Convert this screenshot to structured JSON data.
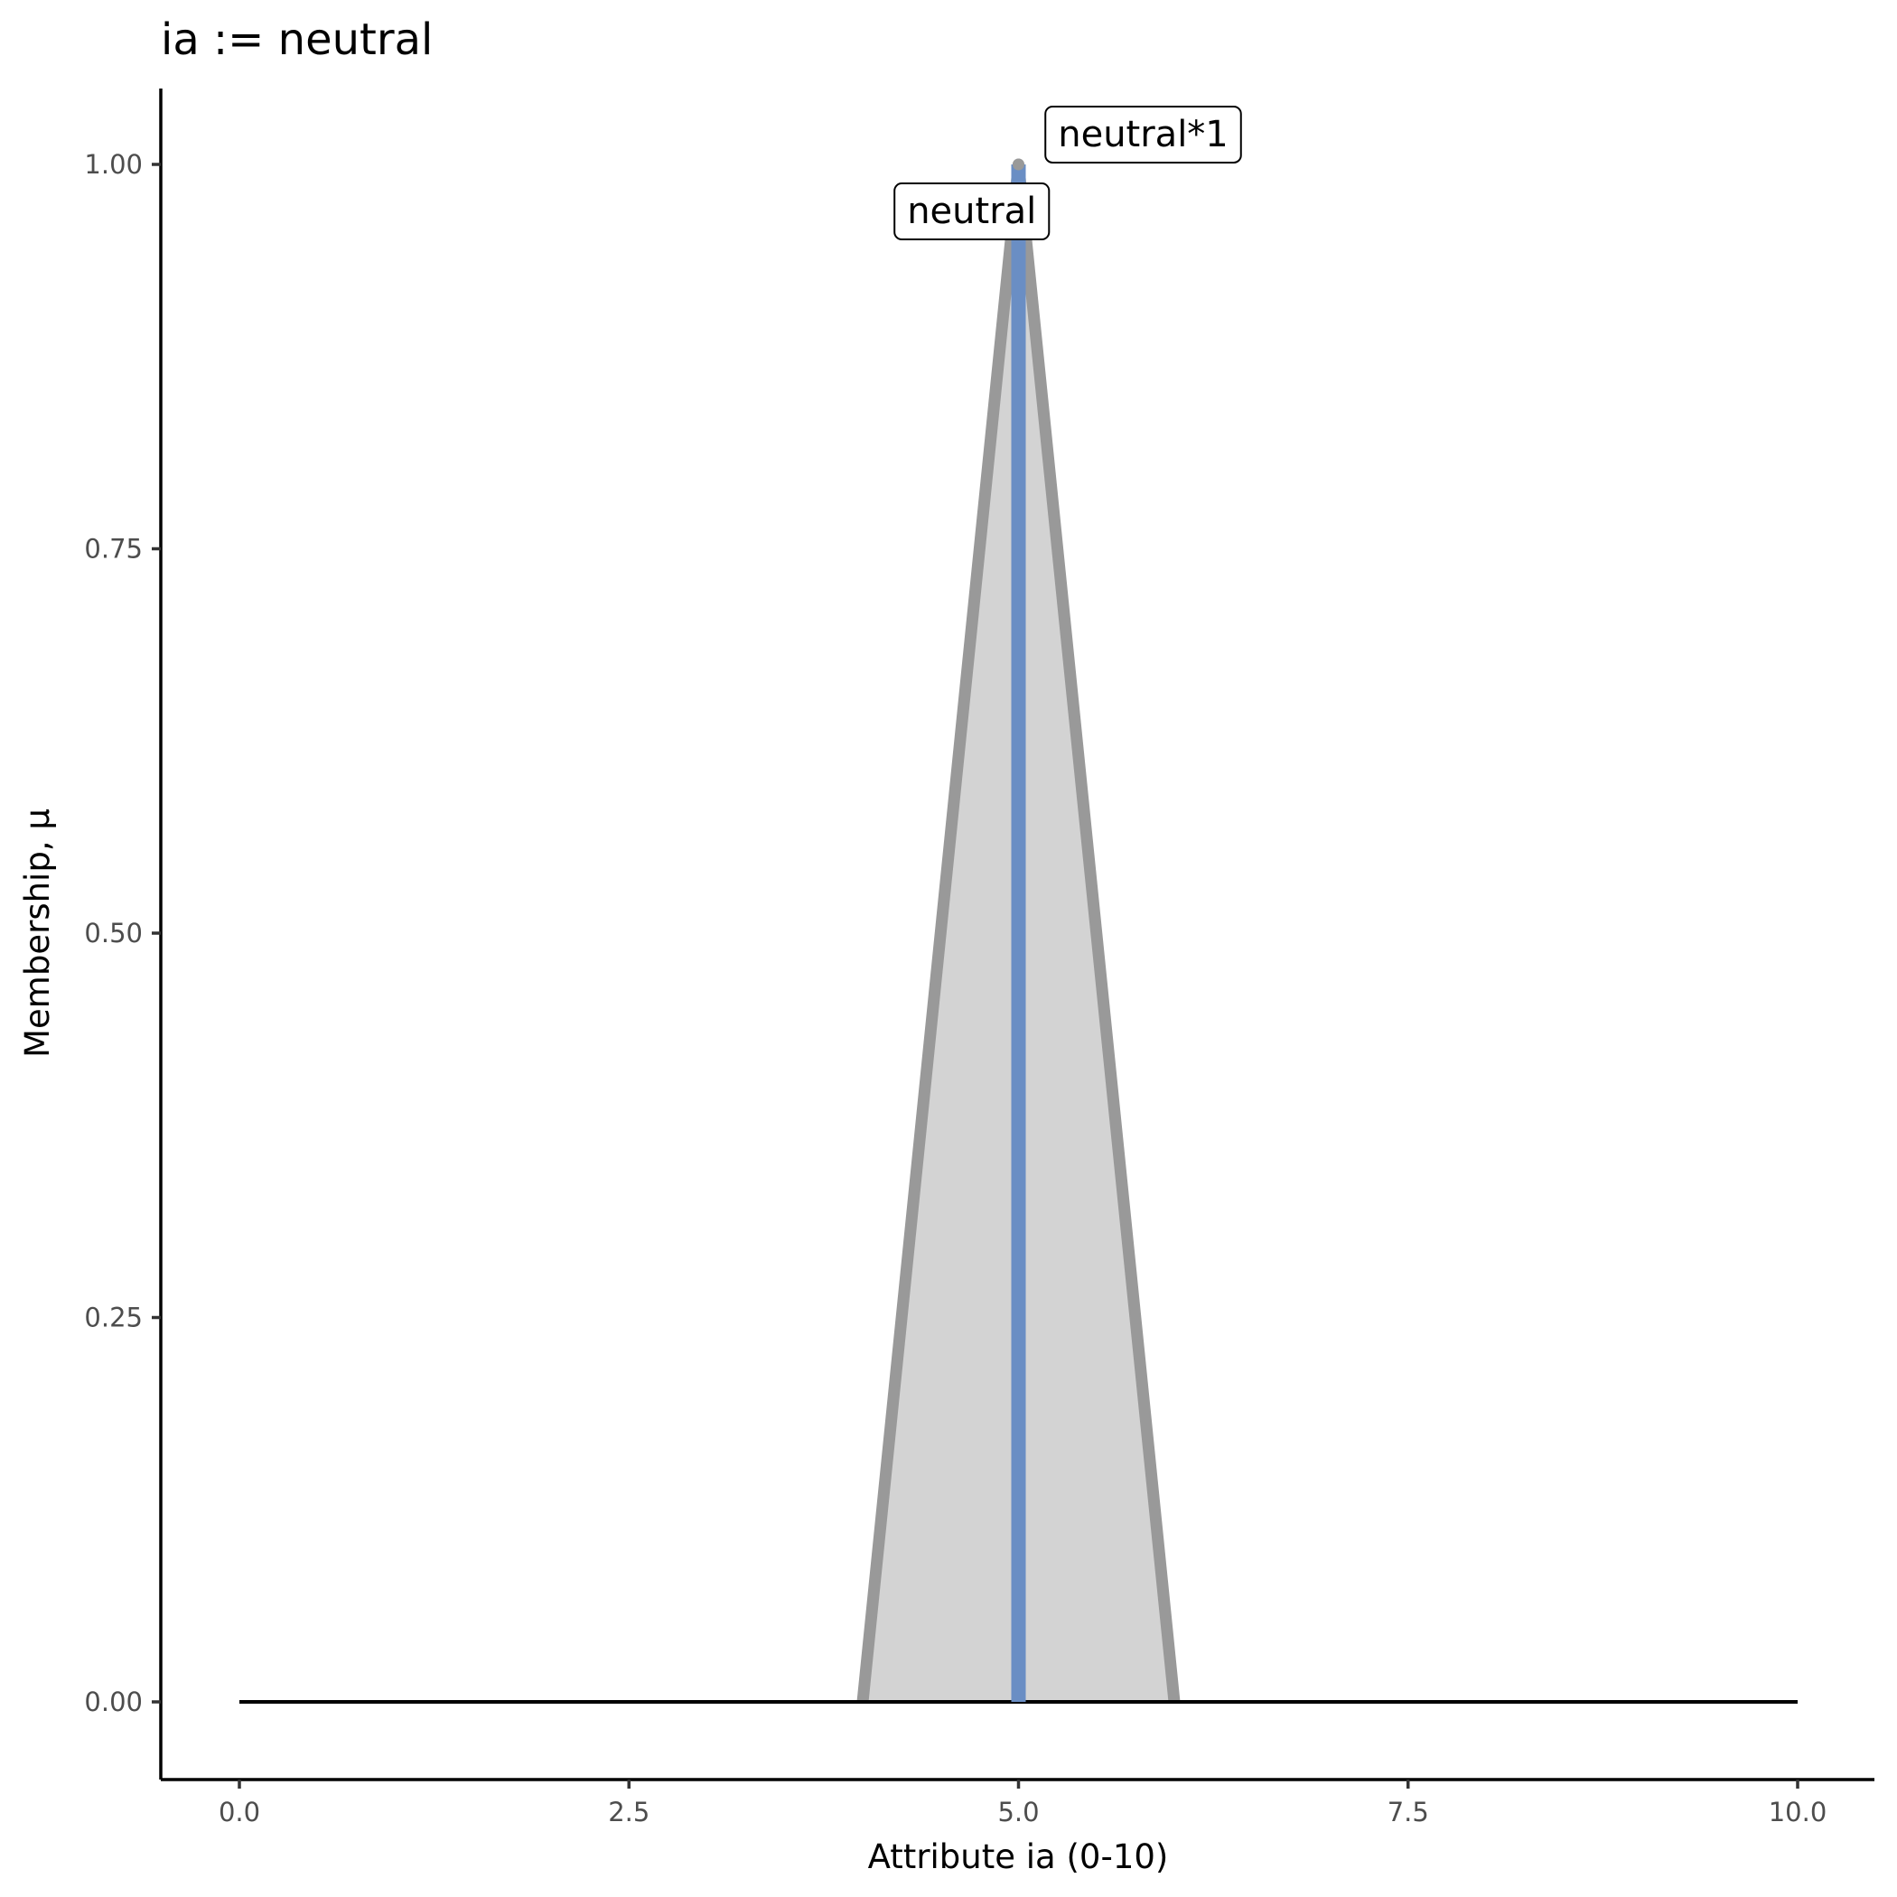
{
  "chart_data": {
    "type": "area",
    "title": "ia := neutral",
    "xlabel": "Attribute ia (0-10)",
    "ylabel": "Membership, μ",
    "xlim": [
      -0.5,
      10.5
    ],
    "ylim": [
      -0.05,
      1.05
    ],
    "xticks": [
      "0.0",
      "2.5",
      "5.0",
      "7.5",
      "10.0"
    ],
    "yticks": [
      "0.00",
      "0.25",
      "0.50",
      "0.75",
      "1.00"
    ],
    "grid": false,
    "series": [
      {
        "name": "neutral",
        "x": [
          4,
          5,
          6
        ],
        "y": [
          0,
          1,
          0
        ],
        "fill": "#d3d3d3",
        "stroke": "#999999"
      }
    ],
    "baseline": {
      "x": [
        0,
        10
      ],
      "y": [
        0,
        0
      ],
      "color": "#000000"
    },
    "value_line": {
      "x": 5,
      "y": [
        0,
        1
      ],
      "color": "#6a8ec4"
    },
    "annotations": [
      {
        "text": "neutral",
        "x": 4.7,
        "y": 0.97
      },
      {
        "text": "neutral*1",
        "x": 5.8,
        "y": 1.02
      }
    ]
  }
}
